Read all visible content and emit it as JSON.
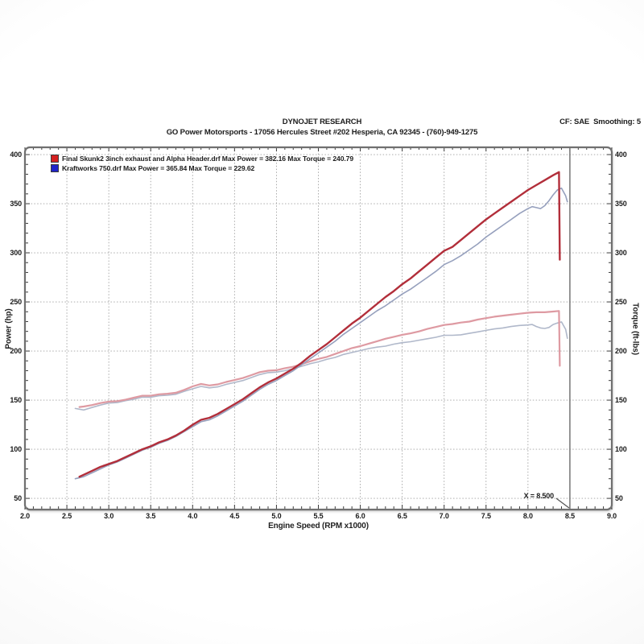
{
  "header": {
    "title": "DYNOJET RESEARCH",
    "subtitle": "GO Power Motorsports - 17056 Hercules Street #202 Hesperia, CA 92345 - (760)-949-1275",
    "correction": "CF: SAE  Smoothing: 5"
  },
  "legend": {
    "rows": [
      {
        "swatch_color": "#d42020",
        "text": "Final Skunk2 3inch exhaust and Alpha Header.drf Max Power = 382.16 Max Torque = 240.79"
      },
      {
        "swatch_color": "#2024c8",
        "text": "Kraftworks 750.drf Max Power = 365.84 Max Torque = 229.62"
      }
    ]
  },
  "cursor": {
    "x": 8.5,
    "label": "X = 8.500"
  },
  "colors": {
    "grid": "#a0a0a0",
    "border": "#707070",
    "tick": "#3a3a3a",
    "cursor_line": "#6b6b6b",
    "plot_bg": "#ffffff"
  },
  "chart_data": {
    "type": "line",
    "title": "DYNOJET RESEARCH",
    "xlabel": "Engine Speed (RPM x1000)",
    "ylabel_left": "Power (hp)",
    "ylabel_right": "Torque (ft-lbs)",
    "xlim": [
      2.0,
      9.0
    ],
    "ylim": [
      38.6,
      407.4
    ],
    "x_ticks": [
      2.0,
      2.5,
      3.0,
      3.5,
      4.0,
      4.5,
      5.0,
      5.5,
      6.0,
      6.5,
      7.0,
      7.5,
      8.0,
      8.5,
      9.0
    ],
    "x_minor_step": 0.1,
    "y_ticks": [
      50,
      100,
      150,
      200,
      250,
      300,
      350,
      400
    ],
    "y_minor_step": 10,
    "grid": "dotted",
    "legend_position": "top-left",
    "cursor_x": 8.5,
    "series": [
      {
        "name": "Final Skunk2 3inch exhaust and Alpha Header.drf",
        "measure": "power",
        "unit": "hp",
        "max": 382.16,
        "color": "#b22e3a",
        "width": 2.4,
        "points": [
          [
            2.65,
            72
          ],
          [
            2.7,
            74
          ],
          [
            2.8,
            78
          ],
          [
            2.9,
            82
          ],
          [
            3.0,
            85
          ],
          [
            3.1,
            88
          ],
          [
            3.2,
            92
          ],
          [
            3.3,
            96
          ],
          [
            3.4,
            100
          ],
          [
            3.5,
            103
          ],
          [
            3.6,
            107
          ],
          [
            3.7,
            110
          ],
          [
            3.8,
            114
          ],
          [
            3.9,
            119
          ],
          [
            4.0,
            125
          ],
          [
            4.1,
            130
          ],
          [
            4.2,
            132
          ],
          [
            4.3,
            136
          ],
          [
            4.4,
            141
          ],
          [
            4.5,
            146
          ],
          [
            4.6,
            151
          ],
          [
            4.7,
            157
          ],
          [
            4.8,
            163
          ],
          [
            4.9,
            168
          ],
          [
            5.0,
            172
          ],
          [
            5.1,
            177
          ],
          [
            5.2,
            182
          ],
          [
            5.3,
            188
          ],
          [
            5.4,
            195
          ],
          [
            5.5,
            201
          ],
          [
            5.6,
            207
          ],
          [
            5.7,
            214
          ],
          [
            5.8,
            221
          ],
          [
            5.9,
            228
          ],
          [
            6.0,
            234
          ],
          [
            6.1,
            241
          ],
          [
            6.2,
            248
          ],
          [
            6.3,
            255
          ],
          [
            6.4,
            261
          ],
          [
            6.5,
            268
          ],
          [
            6.6,
            274
          ],
          [
            6.7,
            281
          ],
          [
            6.8,
            288
          ],
          [
            6.9,
            295
          ],
          [
            7.0,
            302
          ],
          [
            7.1,
            306
          ],
          [
            7.2,
            313
          ],
          [
            7.3,
            320
          ],
          [
            7.4,
            327
          ],
          [
            7.5,
            334
          ],
          [
            7.6,
            340
          ],
          [
            7.7,
            346
          ],
          [
            7.8,
            352
          ],
          [
            7.9,
            358
          ],
          [
            8.0,
            364
          ],
          [
            8.1,
            369
          ],
          [
            8.2,
            374
          ],
          [
            8.3,
            379
          ],
          [
            8.37,
            382.16
          ],
          [
            8.38,
            293
          ]
        ]
      },
      {
        "name": "Kraftworks 750.drf",
        "measure": "power",
        "unit": "hp",
        "max": 365.84,
        "color": "#96a0bd",
        "width": 1.6,
        "points": [
          [
            2.6,
            70
          ],
          [
            2.7,
            72
          ],
          [
            2.8,
            76
          ],
          [
            2.9,
            80
          ],
          [
            3.0,
            84
          ],
          [
            3.1,
            87
          ],
          [
            3.2,
            91
          ],
          [
            3.3,
            95
          ],
          [
            3.4,
            99
          ],
          [
            3.5,
            102
          ],
          [
            3.6,
            106
          ],
          [
            3.7,
            109
          ],
          [
            3.8,
            113
          ],
          [
            3.9,
            118
          ],
          [
            4.0,
            123
          ],
          [
            4.1,
            128
          ],
          [
            4.2,
            130
          ],
          [
            4.3,
            134
          ],
          [
            4.4,
            139
          ],
          [
            4.5,
            144
          ],
          [
            4.6,
            149
          ],
          [
            4.7,
            155
          ],
          [
            4.8,
            161
          ],
          [
            4.9,
            166
          ],
          [
            5.0,
            170
          ],
          [
            5.1,
            175
          ],
          [
            5.2,
            180
          ],
          [
            5.3,
            186
          ],
          [
            5.4,
            192
          ],
          [
            5.5,
            198
          ],
          [
            5.6,
            204
          ],
          [
            5.7,
            210
          ],
          [
            5.8,
            217
          ],
          [
            5.9,
            223
          ],
          [
            6.0,
            229
          ],
          [
            6.1,
            235
          ],
          [
            6.2,
            241
          ],
          [
            6.3,
            246
          ],
          [
            6.4,
            252
          ],
          [
            6.5,
            258
          ],
          [
            6.6,
            263
          ],
          [
            6.7,
            269
          ],
          [
            6.8,
            275
          ],
          [
            6.9,
            281
          ],
          [
            7.0,
            288
          ],
          [
            7.1,
            292
          ],
          [
            7.2,
            297
          ],
          [
            7.3,
            303
          ],
          [
            7.4,
            309
          ],
          [
            7.5,
            316
          ],
          [
            7.6,
            322
          ],
          [
            7.7,
            328
          ],
          [
            7.8,
            334
          ],
          [
            7.9,
            340
          ],
          [
            8.0,
            345
          ],
          [
            8.05,
            347
          ],
          [
            8.1,
            346
          ],
          [
            8.15,
            345
          ],
          [
            8.2,
            348
          ],
          [
            8.25,
            353
          ],
          [
            8.3,
            359
          ],
          [
            8.35,
            364
          ],
          [
            8.4,
            365.84
          ],
          [
            8.45,
            358
          ],
          [
            8.47,
            352
          ]
        ]
      },
      {
        "name": "Final Skunk2 3inch exhaust and Alpha Header.drf",
        "measure": "torque",
        "unit": "ft-lbs",
        "max": 240.79,
        "color": "#de9aa2",
        "width": 2.2,
        "points": [
          [
            2.65,
            143
          ],
          [
            2.7,
            143.5
          ],
          [
            2.8,
            145
          ],
          [
            2.9,
            147
          ],
          [
            3.0,
            148.5
          ],
          [
            3.1,
            149
          ],
          [
            3.2,
            150.5
          ],
          [
            3.3,
            152.5
          ],
          [
            3.4,
            154.5
          ],
          [
            3.5,
            154.5
          ],
          [
            3.6,
            156
          ],
          [
            3.7,
            156.5
          ],
          [
            3.8,
            157.5
          ],
          [
            3.9,
            160.5
          ],
          [
            4.0,
            164
          ],
          [
            4.1,
            166.5
          ],
          [
            4.2,
            165
          ],
          [
            4.3,
            166
          ],
          [
            4.4,
            168.5
          ],
          [
            4.5,
            170.5
          ],
          [
            4.6,
            172.5
          ],
          [
            4.7,
            175.5
          ],
          [
            4.8,
            178.5
          ],
          [
            4.9,
            180
          ],
          [
            5.0,
            180.5
          ],
          [
            5.1,
            182.5
          ],
          [
            5.2,
            184
          ],
          [
            5.3,
            186.5
          ],
          [
            5.4,
            189.5
          ],
          [
            5.5,
            192
          ],
          [
            5.6,
            194
          ],
          [
            5.7,
            197
          ],
          [
            5.8,
            200
          ],
          [
            5.9,
            203
          ],
          [
            6.0,
            205
          ],
          [
            6.1,
            207.5
          ],
          [
            6.2,
            210
          ],
          [
            6.3,
            212.5
          ],
          [
            6.4,
            214.5
          ],
          [
            6.5,
            216.5
          ],
          [
            6.6,
            218
          ],
          [
            6.7,
            220
          ],
          [
            6.8,
            222.5
          ],
          [
            6.9,
            224.5
          ],
          [
            7.0,
            226.5
          ],
          [
            7.1,
            227.5
          ],
          [
            7.2,
            229
          ],
          [
            7.3,
            230
          ],
          [
            7.4,
            232
          ],
          [
            7.5,
            233.5
          ],
          [
            7.6,
            235
          ],
          [
            7.7,
            236
          ],
          [
            7.8,
            237
          ],
          [
            7.9,
            238
          ],
          [
            8.0,
            239
          ],
          [
            8.1,
            239.5
          ],
          [
            8.2,
            239.5
          ],
          [
            8.3,
            240.2
          ],
          [
            8.37,
            240.79
          ],
          [
            8.38,
            185
          ]
        ]
      },
      {
        "name": "Kraftworks 750.drf",
        "measure": "torque",
        "unit": "ft-lbs",
        "max": 229.62,
        "color": "#b0b8ca",
        "width": 1.6,
        "points": [
          [
            2.6,
            141.5
          ],
          [
            2.7,
            140
          ],
          [
            2.8,
            142.5
          ],
          [
            2.9,
            145
          ],
          [
            3.0,
            147
          ],
          [
            3.1,
            147.5
          ],
          [
            3.2,
            149.5
          ],
          [
            3.3,
            151
          ],
          [
            3.4,
            153
          ],
          [
            3.5,
            153
          ],
          [
            3.6,
            154.5
          ],
          [
            3.7,
            155
          ],
          [
            3.8,
            156
          ],
          [
            3.9,
            159
          ],
          [
            4.0,
            161.5
          ],
          [
            4.1,
            164
          ],
          [
            4.2,
            162.5
          ],
          [
            4.3,
            163.5
          ],
          [
            4.4,
            166
          ],
          [
            4.5,
            168
          ],
          [
            4.6,
            170
          ],
          [
            4.7,
            173
          ],
          [
            4.8,
            176
          ],
          [
            4.9,
            178
          ],
          [
            5.0,
            178.5
          ],
          [
            5.1,
            180
          ],
          [
            5.2,
            182
          ],
          [
            5.3,
            184.5
          ],
          [
            5.4,
            187
          ],
          [
            5.5,
            189
          ],
          [
            5.6,
            191.5
          ],
          [
            5.7,
            193.5
          ],
          [
            5.8,
            196.5
          ],
          [
            5.9,
            198.5
          ],
          [
            6.0,
            200.5
          ],
          [
            6.1,
            202.5
          ],
          [
            6.2,
            204
          ],
          [
            6.3,
            205
          ],
          [
            6.4,
            207
          ],
          [
            6.5,
            208.5
          ],
          [
            6.6,
            209.5
          ],
          [
            6.7,
            211
          ],
          [
            6.8,
            212.5
          ],
          [
            6.9,
            214
          ],
          [
            7.0,
            216
          ],
          [
            7.1,
            216
          ],
          [
            7.2,
            216.5
          ],
          [
            7.3,
            218
          ],
          [
            7.4,
            219.5
          ],
          [
            7.5,
            221
          ],
          [
            7.6,
            222.5
          ],
          [
            7.7,
            223.5
          ],
          [
            7.8,
            225
          ],
          [
            7.9,
            226
          ],
          [
            8.0,
            226.5
          ],
          [
            8.05,
            227
          ],
          [
            8.1,
            225
          ],
          [
            8.15,
            223.5
          ],
          [
            8.2,
            223
          ],
          [
            8.25,
            224
          ],
          [
            8.3,
            227
          ],
          [
            8.35,
            228.5
          ],
          [
            8.4,
            229.62
          ],
          [
            8.45,
            222
          ],
          [
            8.47,
            213
          ]
        ]
      }
    ]
  }
}
